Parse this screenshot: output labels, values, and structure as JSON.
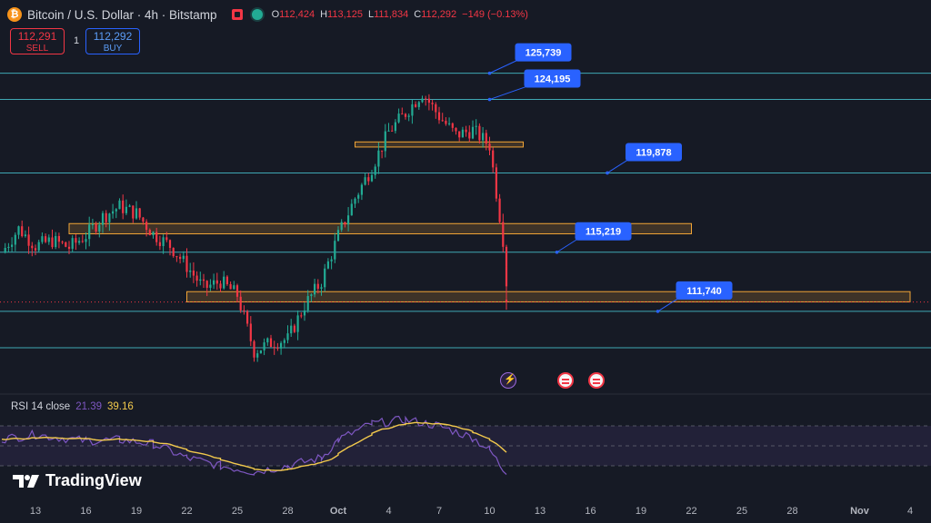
{
  "header": {
    "logo_text": "₿",
    "symbol": "Bitcoin / U.S. Dollar · 4h · Bitstamp",
    "ohlc": {
      "o_label": "O",
      "o": "112,424",
      "h_label": "H",
      "h": "113,125",
      "l_label": "L",
      "l": "111,834",
      "c_label": "C",
      "c": "112,292",
      "change": "−149 (−0.13%)"
    }
  },
  "trade": {
    "sell_price": "112,291",
    "sell_label": "SELL",
    "quantity": "1",
    "buy_price": "112,292",
    "buy_label": "BUY"
  },
  "rsi": {
    "label": "RSI 14 close",
    "value": "21.39",
    "ma_value": "39.16"
  },
  "brand": "TradingView",
  "colors": {
    "background": "#161a25",
    "up": "#22ab94",
    "down": "#f23645",
    "level_line": "#3fa8b4",
    "zone": "#f2a536",
    "label": "#2962ff",
    "rsi_line": "#7e57c2",
    "rsi_ma": "#f2c94c"
  },
  "chart_data": {
    "type": "candlestick",
    "symbol": "BTCUSD",
    "timeframe": "4h",
    "x_ticks": [
      "13",
      "16",
      "19",
      "22",
      "25",
      "28",
      "Oct",
      "4",
      "7",
      "10",
      "13",
      "16",
      "19",
      "22",
      "25",
      "28",
      "Nov",
      "4"
    ],
    "ylim": [
      107200,
      127800
    ],
    "horizontal_levels": [
      {
        "label": "125,739",
        "value": 125739
      },
      {
        "label": "124,195",
        "value": 124195
      },
      {
        "label": "119,878",
        "value": 119878
      },
      {
        "label": "115,219",
        "value": 115219
      },
      {
        "label": "111,740",
        "value": 111740
      },
      {
        "value": 109600
      }
    ],
    "zones": [
      {
        "low": 121400,
        "high": 121700,
        "from": "Oct 2",
        "to": "Oct 12"
      },
      {
        "low": 116300,
        "high": 116900,
        "from": "Sep 15",
        "to": "Oct 22"
      },
      {
        "low": 112300,
        "high": 112900,
        "from": "Sep 22",
        "to": "Nov 4"
      }
    ],
    "ohlc_last": {
      "open": 112424,
      "high": 113125,
      "low": 111834,
      "close": 112292
    },
    "close_path": [
      [
        "Sep 11",
        115200
      ],
      [
        "Sep 12",
        116600
      ],
      [
        "Sep 13",
        115600
      ],
      [
        "Sep 14",
        115900
      ],
      [
        "Sep 15",
        115500
      ],
      [
        "Sep 16",
        116200
      ],
      [
        "Sep 17",
        117300
      ],
      [
        "Sep 18",
        117900
      ],
      [
        "Sep 19",
        117500
      ],
      [
        "Sep 20",
        116300
      ],
      [
        "Sep 21",
        115600
      ],
      [
        "Sep 22",
        114400
      ],
      [
        "Sep 23",
        113100
      ],
      [
        "Sep 24",
        113500
      ],
      [
        "Sep 25",
        112700
      ],
      [
        "Sep 26",
        109400
      ],
      [
        "Sep 27",
        109900
      ],
      [
        "Sep 28",
        110100
      ],
      [
        "Sep 29",
        112100
      ],
      [
        "Sep 30",
        113500
      ],
      [
        "Oct 1",
        116200
      ],
      [
        "Oct 2",
        118400
      ],
      [
        "Oct 3",
        120200
      ],
      [
        "Oct 4",
        122300
      ],
      [
        "Oct 5",
        123400
      ],
      [
        "Oct 6",
        124600
      ],
      [
        "Oct 7",
        123200
      ],
      [
        "Oct 8",
        122100
      ],
      [
        "Oct 9",
        122400
      ],
      [
        "Oct 10",
        121500
      ],
      [
        "Oct 11",
        114600
      ],
      [
        "Oct 11",
        112292
      ]
    ],
    "rsi": {
      "length": 14,
      "bands": [
        70,
        50,
        30
      ],
      "last_rsi": 21.39,
      "last_ma": 39.16,
      "path": [
        [
          "Sep 11",
          57
        ],
        [
          "Sep 13",
          61
        ],
        [
          "Sep 16",
          55
        ],
        [
          "Sep 18",
          56
        ],
        [
          "Sep 20",
          52
        ],
        [
          "Sep 22",
          38
        ],
        [
          "Sep 24",
          30
        ],
        [
          "Sep 26",
          24
        ],
        [
          "Sep 28",
          30
        ],
        [
          "Sep 30",
          38
        ],
        [
          "Oct 1",
          56
        ],
        [
          "Oct 3",
          72
        ],
        [
          "Oct 5",
          76
        ],
        [
          "Oct 7",
          70
        ],
        [
          "Oct 9",
          58
        ],
        [
          "Oct 10",
          46
        ],
        [
          "Oct 11",
          21.39
        ]
      ]
    }
  }
}
